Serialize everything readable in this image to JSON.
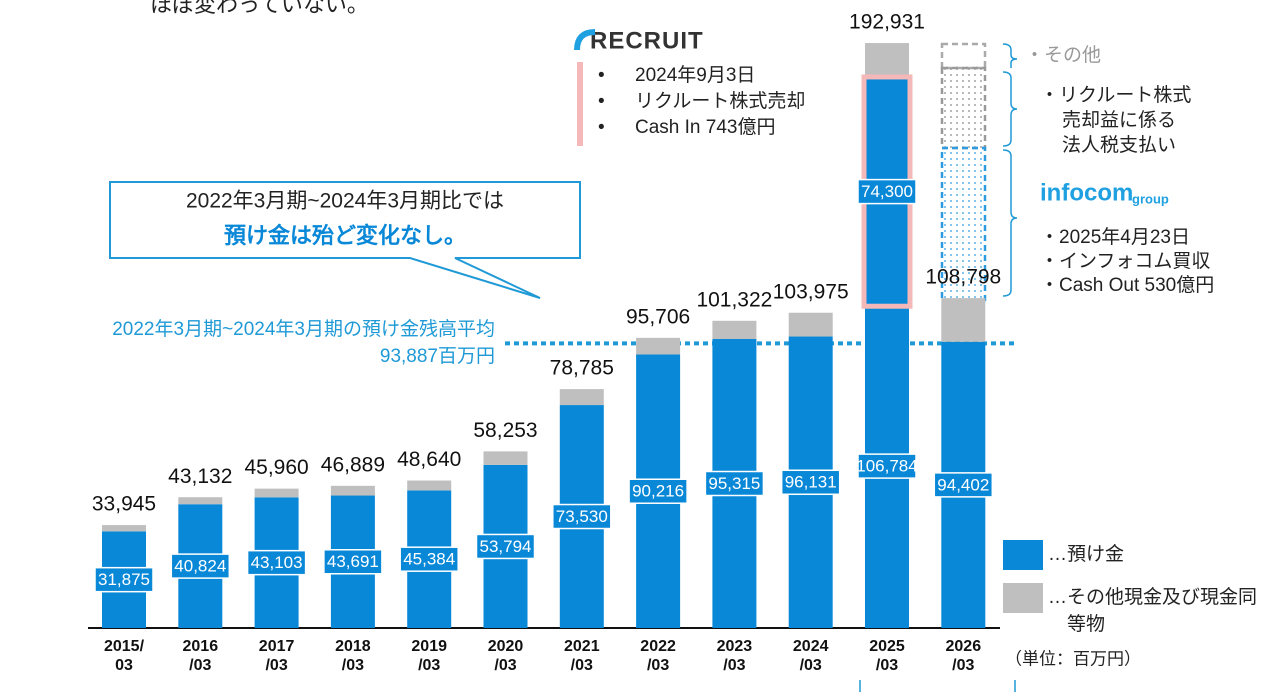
{
  "chart_data": {
    "type": "bar",
    "stacked": true,
    "categories": [
      [
        "2015/",
        "03"
      ],
      [
        "2016",
        "/03"
      ],
      [
        "2017",
        "/03"
      ],
      [
        "2018",
        "/03"
      ],
      [
        "2019",
        "/03"
      ],
      [
        "2020",
        "/03"
      ],
      [
        "2021",
        "/03"
      ],
      [
        "2022",
        "/03"
      ],
      [
        "2023",
        "/03"
      ],
      [
        "2024",
        "/03"
      ],
      [
        "2025",
        "/03"
      ],
      [
        "2026",
        "/03"
      ]
    ],
    "series": [
      {
        "name": "…預け金",
        "color": "#0a88d8",
        "values": [
          31875,
          40824,
          43103,
          43691,
          45384,
          53794,
          73530,
          90216,
          95315,
          96131,
          106784,
          94402
        ],
        "value_labels": [
          "31,875",
          "40,824",
          "43,103",
          "43,691",
          "45,384",
          "53,794",
          "73,530",
          "90,216",
          "95,315",
          "96,131",
          "106,784",
          "94,402"
        ]
      },
      {
        "color": "#0a88d8",
        "values": [
          null,
          null,
          null,
          null,
          null,
          null,
          null,
          null,
          null,
          null,
          74300,
          null
        ],
        "value_labels": [
          null,
          null,
          null,
          null,
          null,
          null,
          null,
          null,
          null,
          null,
          "74,300",
          null
        ]
      },
      {
        "name": "…その他現金及び現金同等物",
        "color": "#bfbfbf",
        "values": [
          2070,
          2308,
          2857,
          3198,
          3256,
          4459,
          5255,
          5490,
          6007,
          7844,
          11847,
          14396
        ]
      }
    ],
    "totals": [
      33945,
      43132,
      45960,
      46889,
      48640,
      58253,
      78785,
      95706,
      101322,
      103975,
      192931,
      108798
    ],
    "total_labels": [
      "33,945",
      "43,132",
      "45,960",
      "46,889",
      "48,640",
      "58,253",
      "78,785",
      "95,706",
      "101,322",
      "103,975",
      "192,931",
      "108,798"
    ],
    "ylim": [
      0,
      200000
    ],
    "average": {
      "value": 93887,
      "title": "2022年3月期~2024年3月期の預け金残高平均",
      "label": "93,887百万円",
      "color": "#1f9ad6"
    },
    "unit_note": "（単位：百万円）",
    "annotations": {
      "top_text": "ほぼ変わっていない。",
      "callout": [
        "2022年3月期~2024年3月期比では",
        "預け金は殆ど変化なし。"
      ],
      "recruit": {
        "logo": "RECRUIT",
        "bullets": [
          "2024年9月3日",
          "リクルート株式売却",
          "Cash In 743億円"
        ]
      },
      "other": "・その他",
      "tax": [
        "・リクルート株式",
        "売却益に係る",
        "法人税支払い"
      ],
      "infocom": {
        "logo": "infocom",
        "logo_sub": "group",
        "bullets": [
          "・2025年4月23日",
          "・インフォコム買収",
          "・Cash Out 530億円"
        ]
      }
    }
  }
}
